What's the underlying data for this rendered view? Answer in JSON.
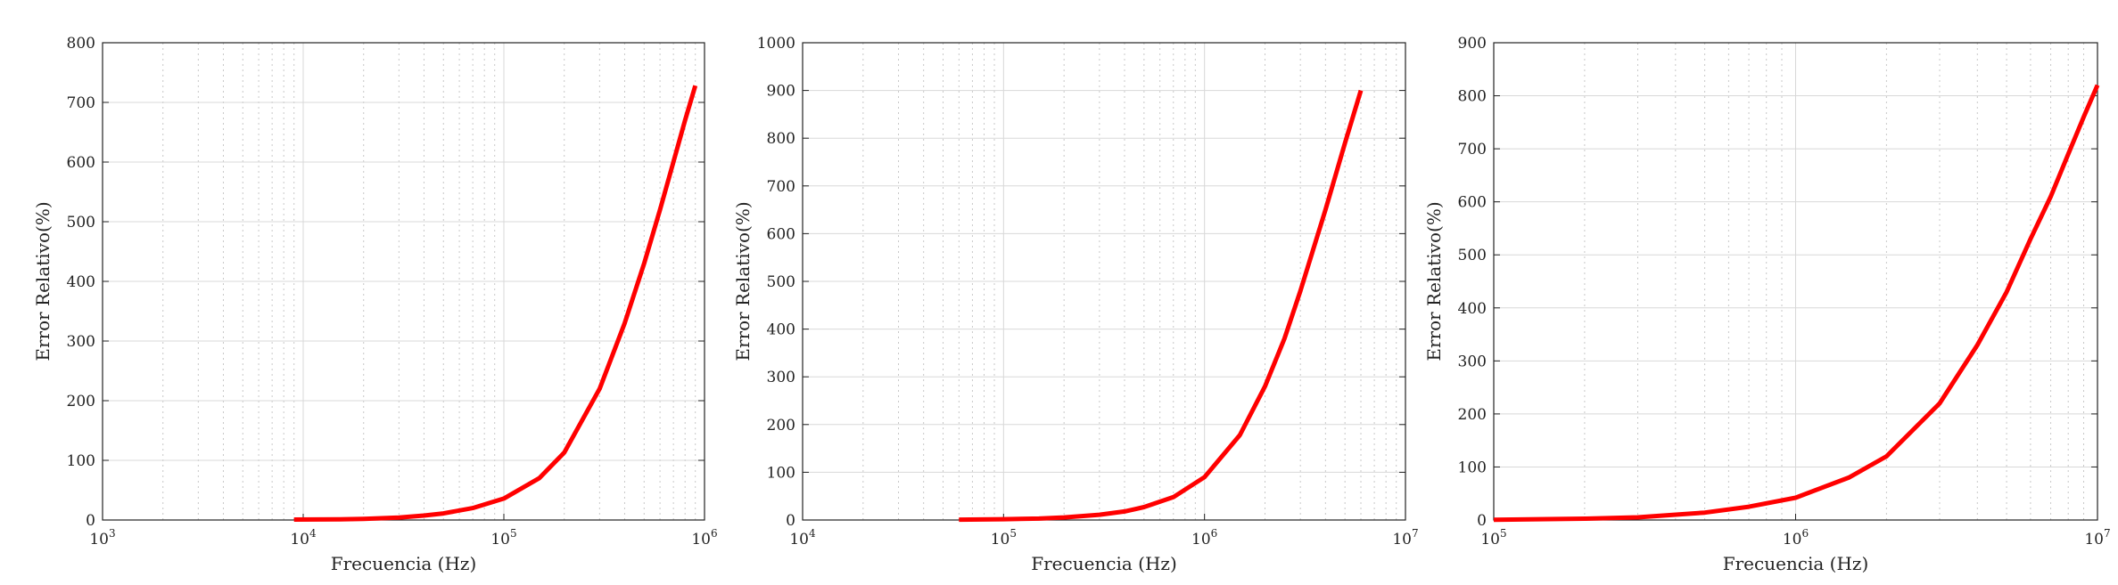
{
  "chart_data": [
    {
      "type": "line",
      "xlabel": "Frecuencia (Hz)",
      "ylabel": "Error Relativo(%)",
      "xscale": "log",
      "xlim": [
        1000,
        1000000
      ],
      "ylim": [
        0,
        800
      ],
      "x_ticks": [
        {
          "base": "10",
          "exp": "3",
          "value": 1000
        },
        {
          "base": "10",
          "exp": "4",
          "value": 10000
        },
        {
          "base": "10",
          "exp": "5",
          "value": 100000
        },
        {
          "base": "10",
          "exp": "6",
          "value": 1000000
        }
      ],
      "y_ticks": [
        "0",
        "100",
        "200",
        "300",
        "400",
        "500",
        "600",
        "700",
        "800"
      ],
      "grid": true,
      "line_color": "#ff0000",
      "series": [
        {
          "x": [
            9000,
            15000,
            20000,
            30000,
            40000,
            50000,
            70000,
            100000,
            150000,
            200000,
            300000,
            400000,
            500000,
            600000,
            700000,
            800000,
            900000
          ],
          "y": [
            0.7,
            1.1,
            2,
            4.2,
            7.5,
            11,
            20,
            36,
            70,
            113,
            220,
            330,
            430,
            520,
            600,
            670,
            728
          ]
        }
      ]
    },
    {
      "type": "line",
      "xlabel": "Frecuencia (Hz)",
      "ylabel": "Error Relativo(%)",
      "xscale": "log",
      "xlim": [
        10000,
        10000000
      ],
      "ylim": [
        0,
        1000
      ],
      "x_ticks": [
        {
          "base": "10",
          "exp": "4",
          "value": 10000
        },
        {
          "base": "10",
          "exp": "5",
          "value": 100000
        },
        {
          "base": "10",
          "exp": "6",
          "value": 1000000
        },
        {
          "base": "10",
          "exp": "7",
          "value": 10000000
        }
      ],
      "y_ticks": [
        "0",
        "100",
        "200",
        "300",
        "400",
        "500",
        "600",
        "700",
        "800",
        "900",
        "1000"
      ],
      "grid": true,
      "line_color": "#ff0000",
      "series": [
        {
          "x": [
            60000,
            100000,
            150000,
            200000,
            300000,
            400000,
            500000,
            700000,
            1000000,
            1500000,
            2000000,
            2500000,
            3000000,
            4000000,
            5000000,
            6000000
          ],
          "y": [
            0.7,
            1.6,
            3,
            5.5,
            11,
            18,
            27,
            48,
            90,
            178,
            280,
            380,
            480,
            650,
            790,
            900
          ]
        }
      ]
    },
    {
      "type": "line",
      "xlabel": "Frecuencia (Hz)",
      "ylabel": "Error Relativo(%)",
      "xscale": "log",
      "xlim": [
        100000,
        10000000
      ],
      "ylim": [
        0,
        900
      ],
      "x_ticks": [
        {
          "base": "10",
          "exp": "5",
          "value": 100000
        },
        {
          "base": "10",
          "exp": "6",
          "value": 1000000
        },
        {
          "base": "10",
          "exp": "7",
          "value": 10000000
        }
      ],
      "y_ticks": [
        "0",
        "100",
        "200",
        "300",
        "400",
        "500",
        "600",
        "700",
        "800",
        "900"
      ],
      "grid": true,
      "line_color": "#ff0000",
      "series": [
        {
          "x": [
            100000,
            200000,
            300000,
            500000,
            700000,
            1000000,
            1500000,
            2000000,
            3000000,
            4000000,
            5000000,
            6000000,
            7000000,
            8000000,
            9000000,
            10000000
          ],
          "y": [
            0.5,
            2.5,
            5,
            14,
            25,
            42,
            80,
            120,
            220,
            330,
            430,
            530,
            610,
            690,
            760,
            820
          ]
        }
      ]
    }
  ]
}
